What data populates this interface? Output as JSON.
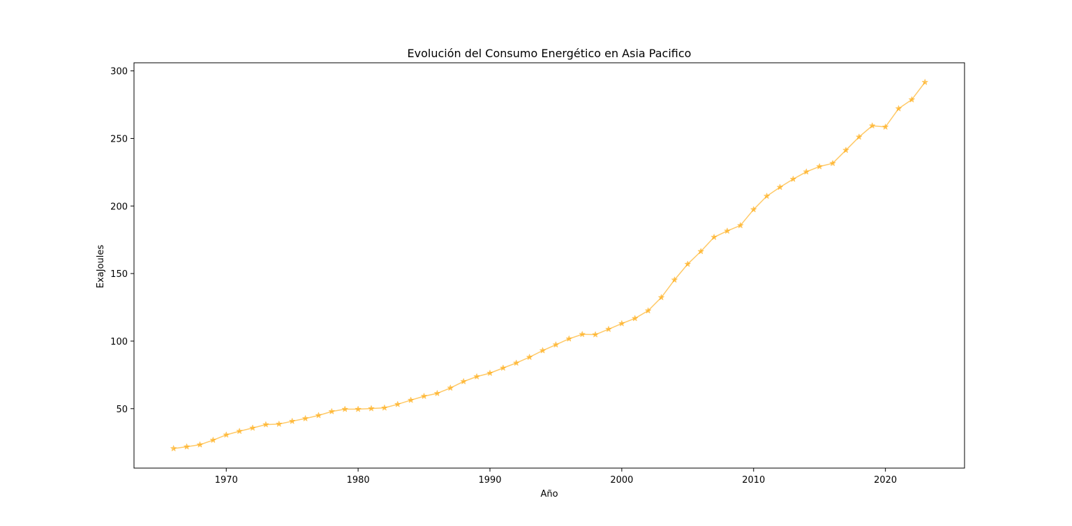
{
  "chart_data": {
    "type": "line",
    "title": "Evolución del Consumo Energético en Asia Pacifico",
    "xlabel": "Año",
    "ylabel": "ExaJoules",
    "xlim": [
      1963,
      2026
    ],
    "ylim": [
      6,
      306
    ],
    "xticks": [
      1970,
      1980,
      1990,
      2000,
      2010,
      2020
    ],
    "yticks": [
      50,
      100,
      150,
      200,
      250,
      300
    ],
    "grid": false,
    "legend": "none",
    "marker": "star",
    "color": "#ffa500",
    "series": [
      {
        "x": [
          1966,
          1967,
          1968,
          1969,
          1970,
          1971,
          1972,
          1973,
          1974,
          1975,
          1976,
          1977,
          1978,
          1979,
          1980,
          1981,
          1982,
          1983,
          1984,
          1985,
          1986,
          1987,
          1988,
          1989,
          1990,
          1991,
          1992,
          1993,
          1994,
          1995,
          1996,
          1997,
          1998,
          1999,
          2000,
          2001,
          2002,
          2003,
          2004,
          2005,
          2006,
          2007,
          2008,
          2009,
          2010,
          2011,
          2012,
          2013,
          2014,
          2015,
          2016,
          2017,
          2018,
          2019,
          2020,
          2021,
          2022,
          2023
        ],
        "values": [
          20.5,
          21.8,
          23.3,
          26.7,
          30.6,
          33.3,
          35.7,
          38.2,
          38.6,
          40.7,
          42.7,
          45.0,
          47.9,
          49.6,
          49.6,
          50.1,
          50.6,
          53.2,
          56.3,
          59.2,
          61.3,
          65.3,
          70.1,
          73.7,
          76.3,
          80.1,
          83.8,
          88.1,
          93.0,
          97.3,
          101.7,
          105.0,
          104.8,
          108.8,
          113.0,
          116.8,
          122.5,
          132.3,
          145.3,
          157.0,
          166.4,
          176.9,
          181.5,
          185.6,
          197.4,
          207.3,
          213.9,
          219.9,
          225.3,
          229.2,
          231.6,
          241.3,
          251.1,
          259.4,
          258.5,
          272.1,
          278.7,
          291.6
        ]
      }
    ]
  }
}
